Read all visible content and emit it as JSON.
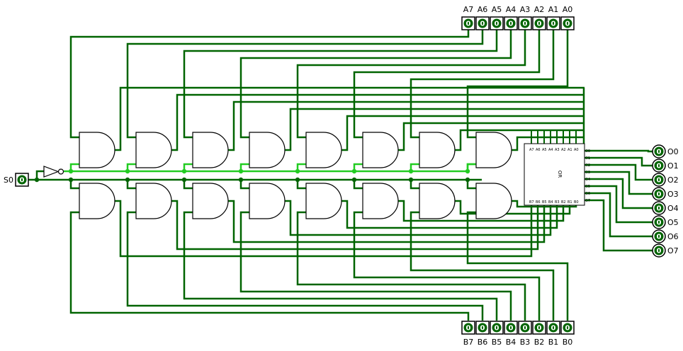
{
  "inputs_a": [
    {
      "label": "A7",
      "value": "0"
    },
    {
      "label": "A6",
      "value": "0"
    },
    {
      "label": "A5",
      "value": "0"
    },
    {
      "label": "A4",
      "value": "0"
    },
    {
      "label": "A3",
      "value": "0"
    },
    {
      "label": "A2",
      "value": "0"
    },
    {
      "label": "A1",
      "value": "0"
    },
    {
      "label": "A0",
      "value": "0"
    }
  ],
  "inputs_b": [
    {
      "label": "B7",
      "value": "0"
    },
    {
      "label": "B6",
      "value": "0"
    },
    {
      "label": "B5",
      "value": "0"
    },
    {
      "label": "B4",
      "value": "0"
    },
    {
      "label": "B3",
      "value": "0"
    },
    {
      "label": "B2",
      "value": "0"
    },
    {
      "label": "B1",
      "value": "0"
    },
    {
      "label": "B0",
      "value": "0"
    }
  ],
  "select": {
    "label": "S0",
    "value": "0"
  },
  "outputs": [
    {
      "label": "O0",
      "value": "0"
    },
    {
      "label": "O1",
      "value": "0"
    },
    {
      "label": "O2",
      "value": "0"
    },
    {
      "label": "O3",
      "value": "0"
    },
    {
      "label": "O4",
      "value": "0"
    },
    {
      "label": "O5",
      "value": "0"
    },
    {
      "label": "O6",
      "value": "0"
    },
    {
      "label": "O7",
      "value": "0"
    }
  ],
  "or_block": {
    "title": "OR",
    "top_pins": [
      "A7",
      "A6",
      "A5",
      "A4",
      "A3",
      "A2",
      "A1",
      "A0"
    ],
    "bottom_pins": [
      "B7",
      "B6",
      "B5",
      "B4",
      "B3",
      "B2",
      "B1",
      "B0"
    ],
    "out_pins": [
      "O0",
      "O1",
      "O2",
      "O3",
      "O4",
      "O5",
      "O6",
      "O7"
    ]
  },
  "colors": {
    "wire": "#006400",
    "active": "#22cc22",
    "pin": "#006400"
  }
}
